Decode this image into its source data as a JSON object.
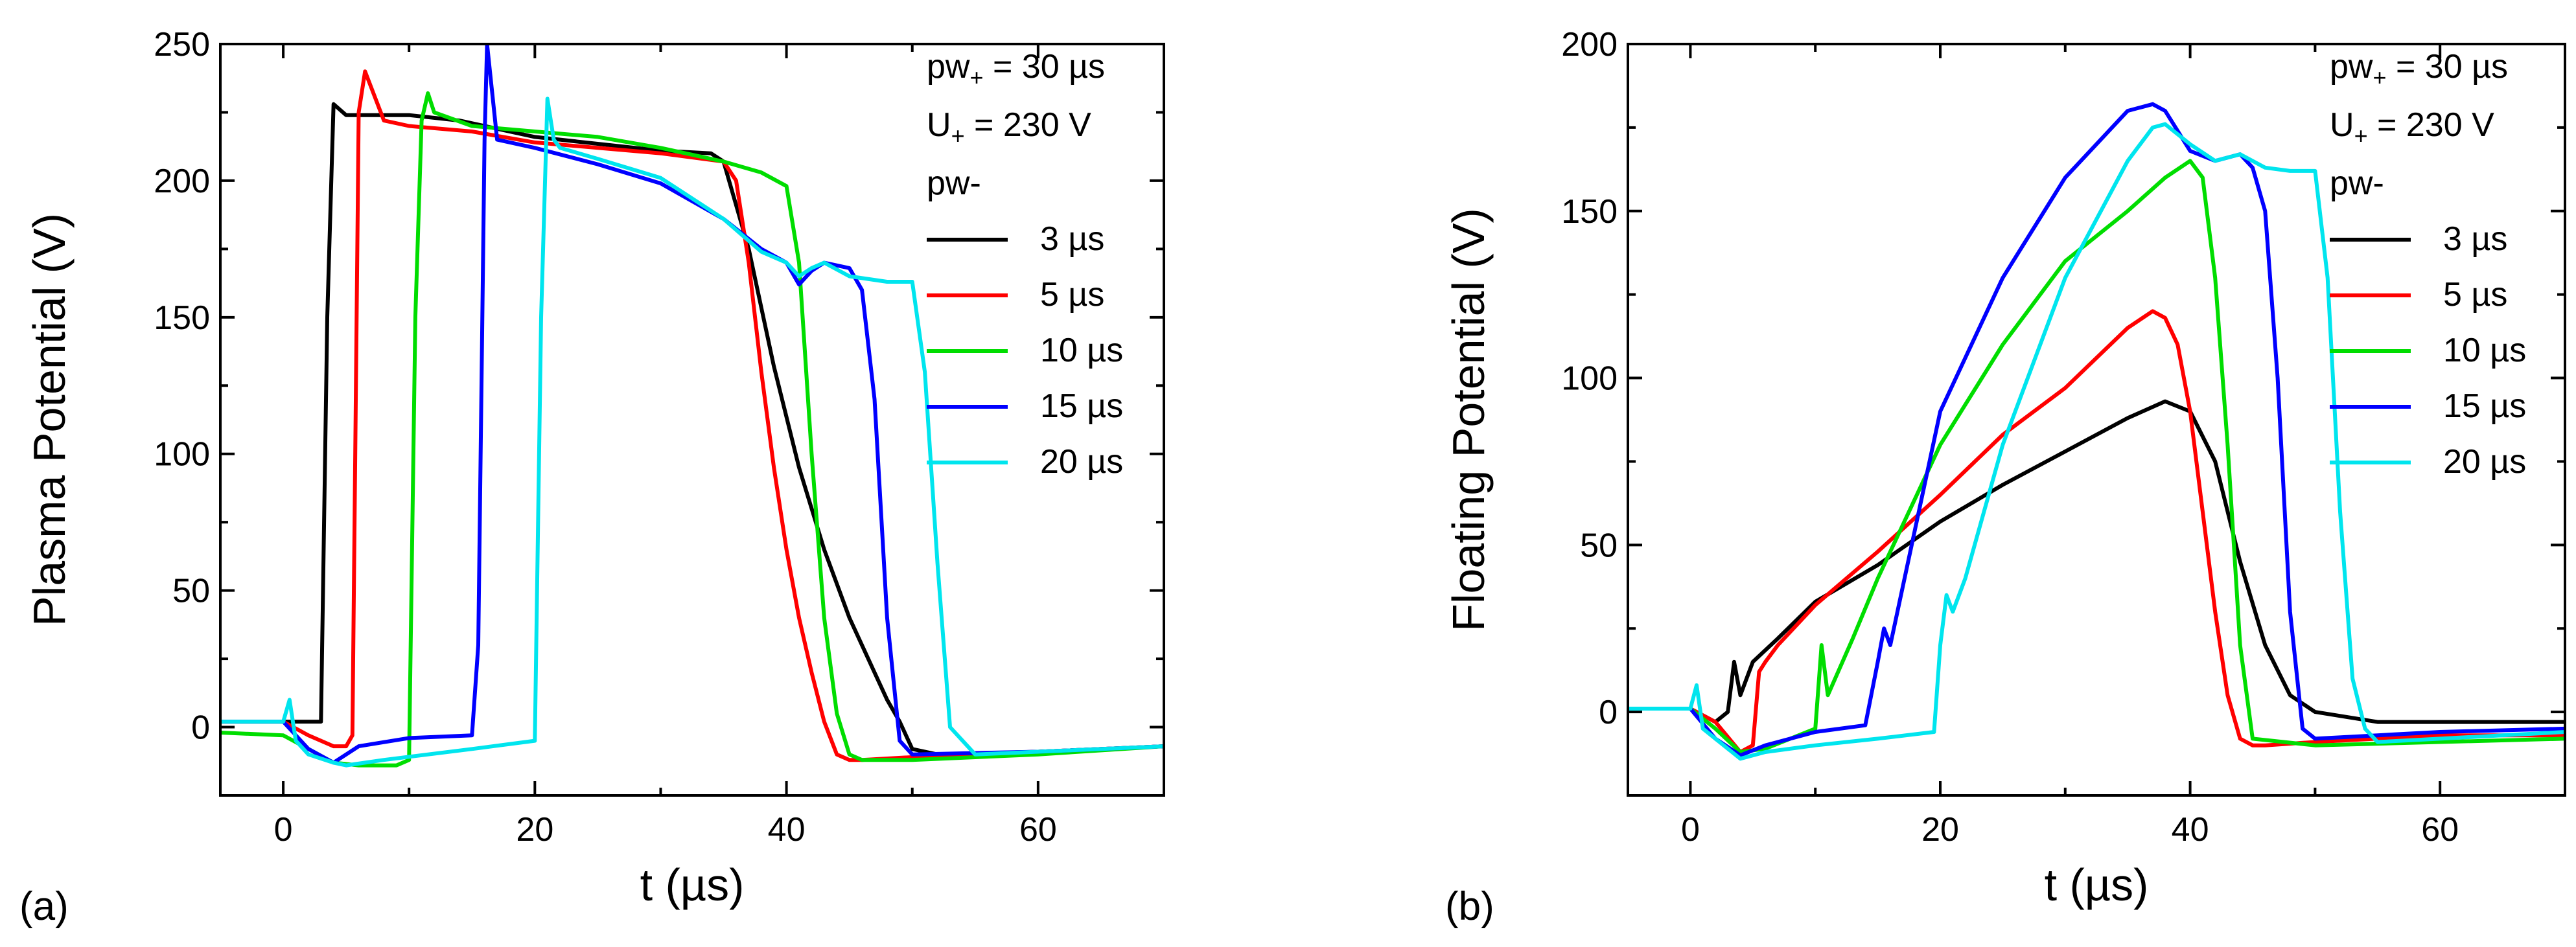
{
  "chart_data": [
    {
      "type": "line",
      "panel_label": "(a)",
      "xlabel": "t (µs)",
      "ylabel": "Plasma Potential (V)",
      "xlim": [
        -5,
        70
      ],
      "ylim": [
        -25,
        250
      ],
      "xticks": [
        0,
        20,
        40,
        60
      ],
      "yticks": [
        0,
        50,
        100,
        150,
        200,
        250
      ],
      "annotations": {
        "line1_main": "pw",
        "line1_sub": "+",
        "line1_rest": " = 30 µs",
        "line2_main": "U",
        "line2_sub": "+",
        "line2_rest": " = 230 V",
        "legend_title": "pw-"
      },
      "legend_position": "top-right",
      "series": [
        {
          "name": "3 µs",
          "color": "#000000",
          "x": [
            -5,
            0,
            3,
            3.5,
            4,
            5,
            8,
            10,
            14,
            20,
            26,
            30,
            34,
            35,
            37,
            39,
            41,
            43,
            45,
            47,
            48,
            49,
            50,
            52,
            60,
            70
          ],
          "y": [
            2,
            2,
            2,
            150,
            228,
            224,
            224,
            224,
            222,
            216,
            213,
            211,
            210,
            207,
            175,
            132,
            95,
            65,
            40,
            20,
            10,
            2,
            -8,
            -10,
            -9,
            -7
          ]
        },
        {
          "name": "5 µs",
          "color": "#ff0000",
          "x": [
            -5,
            0,
            2,
            4,
            5,
            5.5,
            6,
            6.5,
            8,
            10,
            15,
            20,
            25,
            30,
            35,
            36,
            37,
            38,
            39,
            40,
            41,
            42,
            43,
            44,
            45,
            46,
            50,
            60,
            70
          ],
          "y": [
            2,
            2,
            -3,
            -7,
            -7,
            -3,
            225,
            240,
            222,
            220,
            218,
            214,
            212,
            210,
            207,
            200,
            170,
            130,
            95,
            65,
            40,
            20,
            2,
            -10,
            -12,
            -12,
            -11,
            -9,
            -7
          ]
        },
        {
          "name": "10 µs",
          "color": "#00dd00",
          "x": [
            -5,
            0,
            2,
            4,
            6,
            9,
            10,
            10.5,
            11,
            11.5,
            12,
            15,
            20,
            25,
            30,
            35,
            38,
            40,
            41,
            42,
            43,
            44,
            45,
            46,
            50,
            60,
            70
          ],
          "y": [
            -2,
            -3,
            -8,
            -13,
            -14,
            -14,
            -12,
            150,
            222,
            232,
            225,
            220,
            218,
            216,
            212,
            207,
            203,
            198,
            170,
            100,
            40,
            5,
            -10,
            -12,
            -12,
            -10,
            -7
          ]
        },
        {
          "name": "15 µs",
          "color": "#0000ff",
          "x": [
            -5,
            0,
            2,
            4,
            6,
            10,
            15,
            15.5,
            16,
            16.2,
            17,
            20,
            25,
            30,
            35,
            38,
            40,
            41,
            42,
            43,
            45,
            46,
            47,
            48,
            49,
            50,
            60,
            70
          ],
          "y": [
            2,
            2,
            -8,
            -13,
            -7,
            -4,
            -3,
            30,
            215,
            250,
            215,
            212,
            206,
            199,
            186,
            175,
            170,
            162,
            167,
            170,
            168,
            160,
            120,
            40,
            -5,
            -10,
            -9,
            -7
          ]
        },
        {
          "name": "20 µs",
          "color": "#00e5ee",
          "x": [
            -5,
            0,
            0.5,
            1,
            2,
            4,
            5,
            8,
            15,
            20,
            20.5,
            21,
            21.5,
            22,
            25,
            30,
            35,
            38,
            40,
            41,
            42,
            43,
            45,
            48,
            50,
            51,
            52,
            53,
            55,
            60,
            70
          ],
          "y": [
            2,
            2,
            10,
            -5,
            -10,
            -13,
            -14,
            -12,
            -8,
            -5,
            150,
            230,
            215,
            212,
            208,
            201,
            186,
            174,
            170,
            165,
            168,
            170,
            165,
            163,
            163,
            130,
            60,
            0,
            -10,
            -9,
            -7
          ]
        }
      ]
    },
    {
      "type": "line",
      "panel_label": "(b)",
      "xlabel": "t (µs)",
      "ylabel": "Floating Potential (V)",
      "xlim": [
        -5,
        70
      ],
      "ylim": [
        -25,
        200
      ],
      "xticks": [
        0,
        20,
        40,
        60
      ],
      "yticks": [
        0,
        50,
        100,
        150,
        200
      ],
      "annotations": {
        "line1_main": "pw",
        "line1_sub": "+",
        "line1_rest": " = 30 µs",
        "line2_main": "U",
        "line2_sub": "+",
        "line2_rest": " = 230 V",
        "legend_title": "pw-"
      },
      "legend_position": "top-right",
      "series": [
        {
          "name": "3 µs",
          "color": "#000000",
          "x": [
            -5,
            0,
            2,
            3,
            3.5,
            4,
            5,
            7,
            10,
            15,
            20,
            25,
            30,
            35,
            38,
            40,
            42,
            44,
            46,
            48,
            50,
            55,
            60,
            70
          ],
          "y": [
            1,
            1,
            -3,
            0,
            15,
            5,
            15,
            22,
            33,
            44,
            57,
            68,
            78,
            88,
            93,
            90,
            75,
            45,
            20,
            5,
            0,
            -3,
            -3,
            -3
          ]
        },
        {
          "name": "5 µs",
          "color": "#ff0000",
          "x": [
            -5,
            0,
            2,
            4,
            5,
            5.5,
            6,
            7,
            10,
            15,
            20,
            25,
            30,
            35,
            37,
            38,
            39,
            40,
            41,
            42,
            43,
            44,
            45,
            46,
            50,
            60,
            70
          ],
          "y": [
            1,
            1,
            -3,
            -12,
            -10,
            12,
            15,
            20,
            32,
            48,
            65,
            83,
            97,
            115,
            120,
            118,
            110,
            90,
            60,
            30,
            5,
            -8,
            -10,
            -10,
            -9,
            -7,
            -7
          ]
        },
        {
          "name": "10 µs",
          "color": "#00dd00",
          "x": [
            -5,
            0,
            2,
            4,
            6,
            10,
            10.5,
            11,
            13,
            15,
            20,
            25,
            30,
            35,
            38,
            40,
            41,
            42,
            43,
            44,
            45,
            50,
            60,
            70
          ],
          "y": [
            1,
            1,
            -5,
            -12,
            -11,
            -5,
            20,
            5,
            22,
            40,
            80,
            110,
            135,
            150,
            160,
            165,
            160,
            130,
            80,
            20,
            -8,
            -10,
            -9,
            -8
          ]
        },
        {
          "name": "15 µs",
          "color": "#0000ff",
          "x": [
            -5,
            0,
            2,
            4,
            6,
            10,
            14,
            15,
            15.5,
            16,
            18,
            20,
            25,
            30,
            35,
            37,
            38,
            40,
            42,
            44,
            45,
            46,
            47,
            48,
            49,
            50,
            55,
            60,
            70
          ],
          "y": [
            1,
            1,
            -8,
            -13,
            -10,
            -6,
            -4,
            15,
            25,
            20,
            55,
            90,
            130,
            160,
            180,
            182,
            180,
            168,
            165,
            167,
            163,
            150,
            100,
            30,
            -5,
            -8,
            -7,
            -6,
            -5
          ]
        },
        {
          "name": "20 µs",
          "color": "#00e5ee",
          "x": [
            -5,
            0,
            0.5,
            1,
            2,
            4,
            6,
            10,
            15,
            19.5,
            20,
            20.5,
            21,
            22,
            25,
            30,
            35,
            37,
            38,
            40,
            42,
            44,
            46,
            48,
            50,
            51,
            52,
            53,
            54,
            55,
            60,
            70
          ],
          "y": [
            1,
            1,
            8,
            -5,
            -8,
            -14,
            -12,
            -10,
            -8,
            -6,
            20,
            35,
            30,
            40,
            80,
            130,
            165,
            175,
            176,
            170,
            165,
            167,
            163,
            162,
            162,
            130,
            60,
            10,
            -5,
            -9,
            -8,
            -6
          ]
        }
      ]
    }
  ]
}
